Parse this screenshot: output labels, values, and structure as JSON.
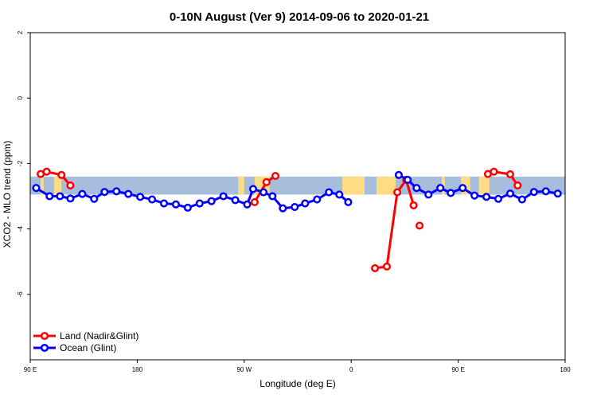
{
  "chart_data": {
    "type": "line",
    "title": "0-10N August (Ver 9)   2014-09-06 to 2020-01-21",
    "xlabel": "Longitude (deg E)",
    "ylabel": "XCO2 - MLO trend (ppm)",
    "xlim": [
      90,
      450
    ],
    "ylim": [
      -8,
      2
    ],
    "x_ticks": [
      {
        "value": 90,
        "label": "90 E"
      },
      {
        "value": 162,
        "label": "180"
      },
      {
        "value": 234,
        "label": "90 W"
      },
      {
        "value": 306,
        "label": "0"
      },
      {
        "value": 378,
        "label": "90 E"
      },
      {
        "value": 450,
        "label": "180"
      }
    ],
    "y_ticks": [
      {
        "value": 2,
        "label": "2"
      },
      {
        "value": 0,
        "label": "0"
      },
      {
        "value": -2,
        "label": "-2"
      },
      {
        "value": -4,
        "label": "-4"
      },
      {
        "value": -6,
        "label": "-6"
      }
    ],
    "background_band": {
      "y_top": -2.4,
      "y_bottom": -2.95,
      "ocean_color": "#a6bddb",
      "land_color": "#fddc85"
    },
    "land_regions": [
      [
        97,
        99
      ],
      [
        106,
        111
      ],
      [
        230,
        234
      ],
      [
        241,
        251
      ],
      [
        300,
        315
      ],
      [
        323,
        336
      ],
      [
        367,
        369
      ],
      [
        380,
        386
      ],
      [
        392,
        399
      ]
    ],
    "series": [
      {
        "name": "Land (Nadir&Glint)",
        "color": "#ff0000",
        "segments": [
          [
            [
              97,
              -2.32
            ],
            [
              101,
              -2.25
            ],
            [
              111,
              -2.35
            ],
            [
              117,
              -2.67
            ]
          ],
          [
            [
              241,
              -3.18
            ],
            [
              249,
              -2.57
            ],
            [
              255,
              -2.38
            ]
          ],
          [
            [
              322,
              -5.2
            ],
            [
              330,
              -5.15
            ],
            [
              337,
              -2.88
            ],
            [
              343,
              -2.5
            ],
            [
              348,
              -3.28
            ]
          ],
          [
            [
              352,
              -3.9
            ]
          ],
          [
            [
              398,
              -2.32
            ],
            [
              402,
              -2.25
            ],
            [
              413,
              -2.33
            ],
            [
              418,
              -2.67
            ]
          ]
        ]
      },
      {
        "name": "Ocean (Glint)",
        "color": "#0000ff",
        "segments": [
          [
            [
              94,
              -2.75
            ],
            [
              103,
              -3.0
            ],
            [
              110,
              -3.0
            ],
            [
              117,
              -3.07
            ],
            [
              125,
              -2.93
            ],
            [
              133,
              -3.08
            ],
            [
              140,
              -2.87
            ],
            [
              148,
              -2.85
            ],
            [
              156,
              -2.93
            ],
            [
              164,
              -3.02
            ],
            [
              172,
              -3.1
            ],
            [
              180,
              -3.22
            ],
            [
              188,
              -3.25
            ],
            [
              196,
              -3.35
            ],
            [
              204,
              -3.22
            ],
            [
              212,
              -3.15
            ],
            [
              220,
              -3.0
            ],
            [
              228,
              -3.12
            ],
            [
              236,
              -3.25
            ],
            [
              240,
              -2.78
            ],
            [
              247,
              -2.88
            ],
            [
              253,
              -3.0
            ],
            [
              260,
              -3.37
            ],
            [
              268,
              -3.33
            ],
            [
              275,
              -3.22
            ],
            [
              283,
              -3.1
            ],
            [
              291,
              -2.88
            ],
            [
              298,
              -2.95
            ],
            [
              304,
              -3.18
            ]
          ],
          [
            [
              338,
              -2.35
            ],
            [
              344,
              -2.5
            ],
            [
              350,
              -2.75
            ],
            [
              358,
              -2.95
            ],
            [
              366,
              -2.75
            ],
            [
              373,
              -2.9
            ],
            [
              381,
              -2.75
            ],
            [
              389,
              -2.98
            ],
            [
              397,
              -3.02
            ],
            [
              405,
              -3.08
            ],
            [
              413,
              -2.92
            ],
            [
              421,
              -3.1
            ],
            [
              429,
              -2.87
            ],
            [
              437,
              -2.85
            ],
            [
              445,
              -2.92
            ]
          ]
        ]
      }
    ],
    "legend": {
      "position": "bottom-left",
      "entries": [
        "Land (Nadir&Glint)",
        "Ocean (Glint)"
      ]
    }
  }
}
